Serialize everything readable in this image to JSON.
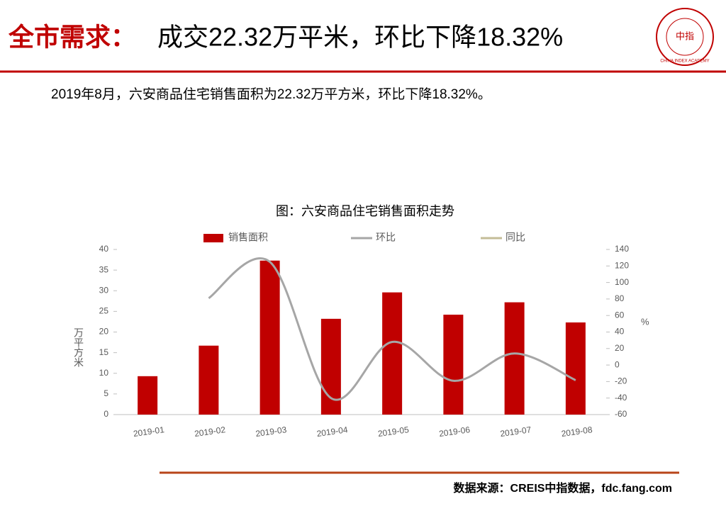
{
  "header": {
    "title_prefix": "全市需求：",
    "title": "成交22.32万平米，环比下降18.32%",
    "logo_text": "CHINA INDEX ACADEMY",
    "logo_center": "中指"
  },
  "summary": "2019年8月，六安商品住宅销售面积为22.32万平方米，环比下降18.32%。",
  "chart_data": {
    "type": "bar",
    "title": "图：六安商品住宅销售面积走势",
    "y_label": "万平方米",
    "y2_label": "%",
    "categories": [
      "2019-01",
      "2019-02",
      "2019-03",
      "2019-04",
      "2019-05",
      "2019-06",
      "2019-07",
      "2019-08"
    ],
    "series": [
      {
        "name": "销售面积",
        "type": "bar",
        "color": "#c00000",
        "values": [
          9.3,
          16.7,
          37.3,
          23.2,
          29.6,
          24.2,
          27.2,
          22.32
        ]
      },
      {
        "name": "环比",
        "type": "line",
        "axis": "y2",
        "color": "#a6a6a6",
        "values": [
          null,
          81,
          125,
          -40,
          28,
          -19,
          14,
          -18.32
        ]
      },
      {
        "name": "同比",
        "type": "line",
        "axis": "y2",
        "color": "#c4bd97",
        "values": [
          null,
          null,
          null,
          null,
          null,
          null,
          null,
          null
        ]
      }
    ],
    "ylim": [
      0,
      40
    ],
    "yticks": [
      0,
      5,
      10,
      15,
      20,
      25,
      30,
      35,
      40
    ],
    "y2lim": [
      -60,
      140
    ],
    "y2ticks": [
      -60,
      -40,
      -20,
      0,
      20,
      40,
      60,
      80,
      100,
      120,
      140
    ],
    "grid": false,
    "legend": "top"
  },
  "source": "数据来源：CREIS中指数据，fdc.fang.com"
}
